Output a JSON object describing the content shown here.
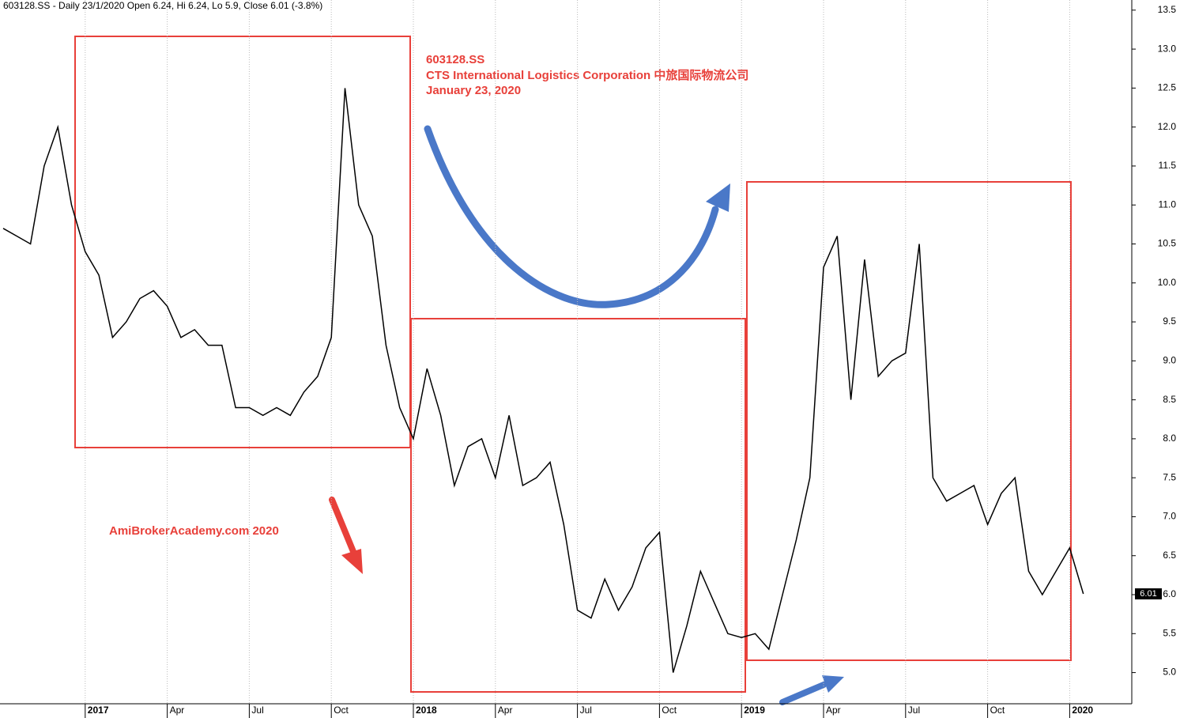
{
  "chart_data": {
    "type": "line",
    "title": "603128.SS - Daily 23/1/2020 Open 6.24, Hi 6.24, Lo 5.9, Close 6.01 (-3.8%)",
    "annotations": [
      "603128.SS",
      "CTS International Logistics Corporation   中旅国际物流公司",
      "January 23, 2020",
      "AmiBrokerAcademy.com   2020"
    ],
    "categories": [
      null,
      null,
      null,
      null,
      null,
      null,
      "2017",
      null,
      null,
      null,
      null,
      null,
      "Apr",
      null,
      null,
      null,
      null,
      null,
      "Jul",
      null,
      null,
      null,
      null,
      null,
      "Oct",
      null,
      null,
      null,
      null,
      null,
      "2018",
      null,
      null,
      null,
      null,
      null,
      "Apr",
      null,
      null,
      null,
      null,
      null,
      "Jul",
      null,
      null,
      null,
      null,
      null,
      "Oct",
      null,
      null,
      null,
      null,
      null,
      "2019",
      null,
      null,
      null,
      null,
      null,
      "Apr",
      null,
      null,
      null,
      null,
      null,
      "Jul",
      null,
      null,
      null,
      null,
      null,
      "Oct",
      null,
      null,
      null,
      null,
      null,
      "2020",
      null
    ],
    "series": [
      {
        "name": "603128.SS",
        "color": "#000000",
        "values": [
          10.7,
          10.6,
          10.5,
          11.5,
          12.0,
          11.0,
          10.4,
          10.1,
          9.3,
          9.5,
          9.8,
          9.9,
          9.7,
          9.3,
          9.4,
          9.2,
          9.2,
          8.4,
          8.4,
          8.3,
          8.4,
          8.3,
          8.6,
          8.8,
          9.3,
          12.5,
          11.0,
          10.6,
          9.2,
          8.4,
          8.0,
          8.9,
          8.3,
          7.4,
          7.9,
          8.0,
          7.5,
          8.3,
          7.4,
          7.5,
          7.7,
          6.9,
          5.8,
          5.7,
          6.2,
          5.8,
          6.1,
          6.6,
          6.8,
          5.0,
          5.6,
          6.3,
          5.9,
          5.5,
          5.45,
          5.5,
          5.3,
          6.0,
          6.7,
          7.5,
          10.2,
          10.6,
          8.5,
          10.3,
          8.8,
          9.0,
          9.1,
          10.5,
          7.5,
          7.2,
          7.3,
          7.4,
          6.9,
          7.3,
          7.5,
          6.3,
          6.0,
          6.3,
          6.6,
          6.01
        ]
      }
    ],
    "ylim": [
      4.6,
      13.63
    ],
    "yticks": [
      {
        "value": 5,
        "label": "5.0"
      },
      {
        "value": 5.5,
        "label": "5.5"
      },
      {
        "value": 6,
        "label": "6.0"
      },
      {
        "value": 6.5,
        "label": "6.5"
      },
      {
        "value": 7,
        "label": "7.0"
      },
      {
        "value": 7.5,
        "label": "7.5"
      },
      {
        "value": 8,
        "label": "8.0"
      },
      {
        "value": 8.5,
        "label": "8.5"
      },
      {
        "value": 9,
        "label": "9.0"
      },
      {
        "value": 9.5,
        "label": "9.5"
      },
      {
        "value": 10,
        "label": "10.0"
      },
      {
        "value": 10.5,
        "label": "10.5"
      },
      {
        "value": 11,
        "label": "11.0"
      },
      {
        "value": 11.5,
        "label": "11.5"
      },
      {
        "value": 12,
        "label": "12.0"
      },
      {
        "value": 12.5,
        "label": "12.5"
      },
      {
        "value": 13,
        "label": "13.0"
      },
      {
        "value": 13.5,
        "label": "13.5"
      }
    ],
    "grid": true
  }
}
